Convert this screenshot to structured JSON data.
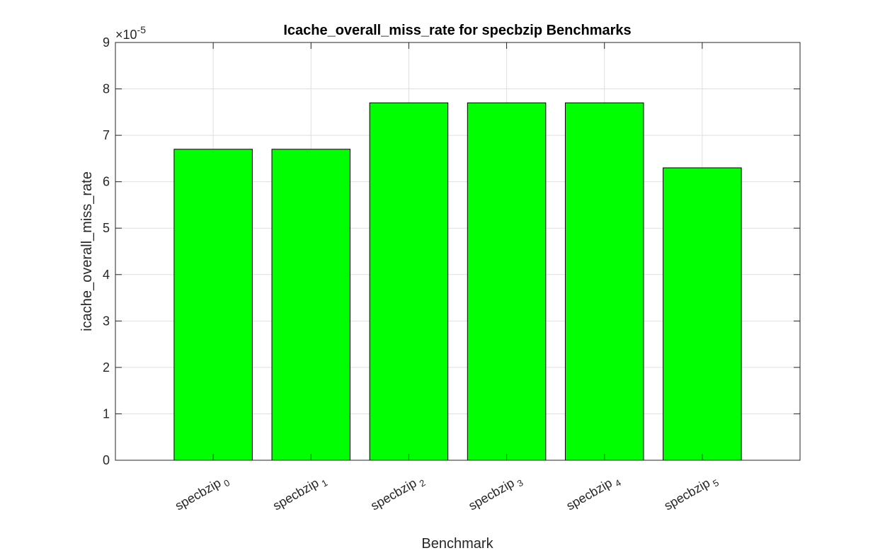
{
  "chart_data": {
    "type": "bar",
    "title": "Icache_overall_miss_rate for specbzip Benchmarks",
    "xlabel": "Benchmark",
    "ylabel": "icache_overall_miss_rate",
    "exponent_base": "×10",
    "exponent_power": "-5",
    "categories": [
      {
        "base": "specbzip",
        "sub": "0"
      },
      {
        "base": "specbzip",
        "sub": "1"
      },
      {
        "base": "specbzip",
        "sub": "2"
      },
      {
        "base": "specbzip",
        "sub": "3"
      },
      {
        "base": "specbzip",
        "sub": "4"
      },
      {
        "base": "specbzip",
        "sub": "5"
      }
    ],
    "values": [
      6.7e-05,
      6.7e-05,
      7.7e-05,
      7.7e-05,
      7.7e-05,
      6.3e-05
    ],
    "yticks": [
      "0",
      "1",
      "2",
      "3",
      "4",
      "5",
      "6",
      "7",
      "8",
      "9"
    ],
    "ylim": [
      0,
      9e-05
    ],
    "grid": true,
    "bar_color": "#00ff00"
  }
}
